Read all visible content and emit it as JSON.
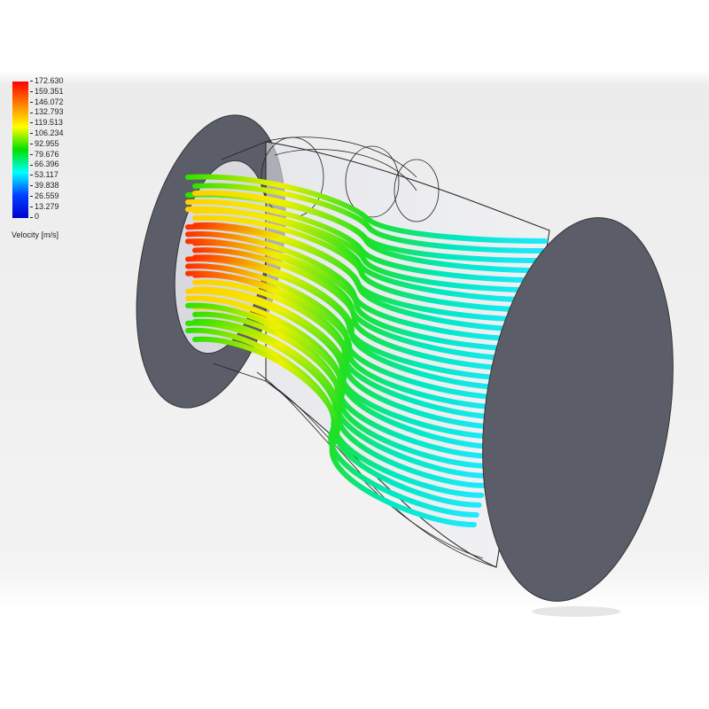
{
  "legend": {
    "title": "Velocity [m/s]",
    "values": [
      "172.630",
      "159.351",
      "146.072",
      "132.793",
      "119.513",
      "106.234",
      "92.955",
      "79.676",
      "66.396",
      "53.117",
      "39.838",
      "26.559",
      "13.279",
      "0"
    ],
    "colors": [
      "#ff0000",
      "#ff8000",
      "#ffff00",
      "#00e000",
      "#00ffff",
      "#0040ff",
      "#0000cc"
    ]
  },
  "scene": {
    "background": "#eeeeee",
    "disk_color": "#5b5e69"
  }
}
